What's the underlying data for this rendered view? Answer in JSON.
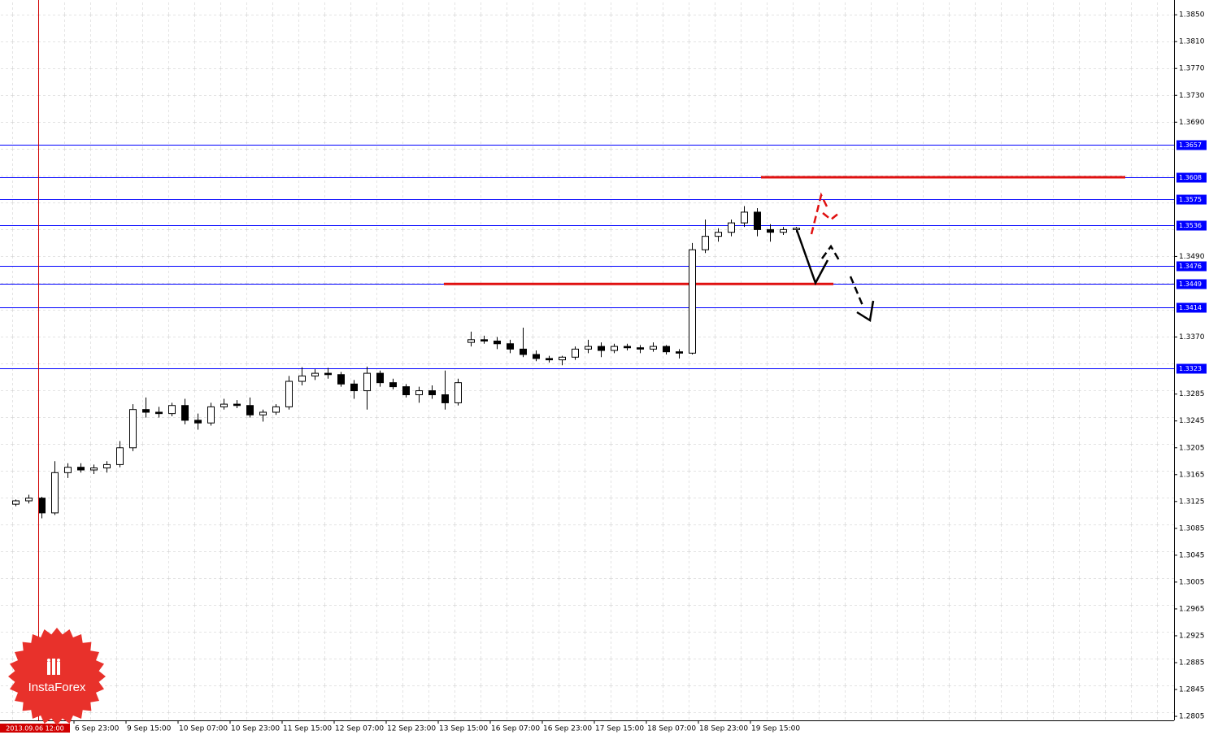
{
  "chart_data": {
    "type": "candlestick",
    "categories": [
      null,
      null,
      null,
      null,
      null,
      "6 Sep 23:00",
      null,
      null,
      null,
      "9 Sep 15:00",
      null,
      null,
      null,
      "10 Sep 07:00",
      null,
      null,
      null,
      "10 Sep 23:00",
      null,
      null,
      null,
      "11 Sep 15:00",
      null,
      null,
      null,
      "12 Sep 07:00",
      null,
      null,
      null,
      "12 Sep 23:00",
      null,
      null,
      null,
      "13 Sep 15:00",
      null,
      null,
      null,
      "16 Sep 07:00",
      null,
      null,
      null,
      "16 Sep 23:00",
      null,
      null,
      null,
      "17 Sep 15:00",
      null,
      null,
      null,
      "18 Sep 07:00",
      null,
      null,
      null,
      "18 Sep 23:00",
      null,
      null,
      null,
      "19 Sep 15:00",
      null,
      null,
      null
    ],
    "open": [
      1.3121,
      1.3126,
      1.313,
      1.3108,
      1.3168,
      1.3176,
      1.3172,
      1.3175,
      1.318,
      1.3205,
      1.3262,
      1.3258,
      1.3256,
      1.3268,
      1.3246,
      1.3242,
      1.3266,
      1.327,
      1.3268,
      1.3254,
      1.3258,
      1.3266,
      1.3304,
      1.3312,
      1.3316,
      1.3314,
      1.33,
      1.329,
      1.3316,
      1.3302,
      1.3296,
      1.3284,
      1.329,
      1.3284,
      1.3272,
      1.3362,
      1.3366,
      1.3364,
      1.336,
      1.3352,
      1.3344,
      1.3338,
      1.3336,
      1.334,
      1.3352,
      1.3356,
      1.335,
      1.3356,
      1.3354,
      1.3352,
      1.3356,
      1.3348,
      1.3346,
      1.35,
      1.352,
      1.3526,
      1.354,
      1.3556,
      1.353,
      1.3526,
      1.353
    ],
    "high": [
      1.3128,
      1.3135,
      1.3132,
      1.3185,
      1.3182,
      1.3182,
      1.318,
      1.3185,
      1.3215,
      1.327,
      1.328,
      1.3266,
      1.3272,
      1.3278,
      1.3256,
      1.3272,
      1.3278,
      1.3276,
      1.328,
      1.3262,
      1.327,
      1.3312,
      1.3325,
      1.3322,
      1.3324,
      1.3318,
      1.3306,
      1.3326,
      1.332,
      1.3308,
      1.33,
      1.3296,
      1.3298,
      1.332,
      1.3308,
      1.3378,
      1.3372,
      1.337,
      1.3366,
      1.3384,
      1.335,
      1.3342,
      1.3342,
      1.3356,
      1.3366,
      1.3362,
      1.336,
      1.336,
      1.3358,
      1.3362,
      1.3358,
      1.3352,
      1.351,
      1.3545,
      1.3532,
      1.3545,
      1.3565,
      1.3562,
      1.3538,
      1.3534,
      1.3534
    ],
    "low": [
      1.3118,
      1.3122,
      1.31,
      1.3105,
      1.316,
      1.3168,
      1.3166,
      1.3168,
      1.3176,
      1.32,
      1.325,
      1.325,
      1.3252,
      1.324,
      1.3232,
      1.3238,
      1.3262,
      1.3264,
      1.325,
      1.3244,
      1.3254,
      1.3262,
      1.3298,
      1.3306,
      1.3308,
      1.3296,
      1.3278,
      1.3262,
      1.3296,
      1.3292,
      1.328,
      1.3272,
      1.3278,
      1.3262,
      1.3268,
      1.3356,
      1.336,
      1.3352,
      1.3346,
      1.334,
      1.3334,
      1.3332,
      1.3328,
      1.3336,
      1.3346,
      1.334,
      1.3346,
      1.335,
      1.3346,
      1.3348,
      1.3344,
      1.3338,
      1.3344,
      1.3495,
      1.3512,
      1.352,
      1.3534,
      1.352,
      1.3512,
      1.3522,
      1.3526
    ],
    "close": [
      1.3126,
      1.313,
      1.3108,
      1.3168,
      1.3176,
      1.3172,
      1.3175,
      1.318,
      1.3205,
      1.3262,
      1.3258,
      1.3256,
      1.3268,
      1.3246,
      1.3242,
      1.3266,
      1.327,
      1.3268,
      1.3254,
      1.3258,
      1.3266,
      1.3304,
      1.3312,
      1.3316,
      1.3314,
      1.33,
      1.329,
      1.3316,
      1.3302,
      1.3296,
      1.3284,
      1.329,
      1.3284,
      1.3272,
      1.3302,
      1.3366,
      1.3364,
      1.336,
      1.3352,
      1.3344,
      1.3338,
      1.3336,
      1.334,
      1.3352,
      1.3356,
      1.335,
      1.3356,
      1.3354,
      1.3352,
      1.3356,
      1.3348,
      1.3346,
      1.35,
      1.352,
      1.3526,
      1.354,
      1.3556,
      1.353,
      1.3526,
      1.353,
      1.3532
    ],
    "ylim": [
      1.2799,
      1.3872
    ],
    "yticks": [
      {
        "value": 1.385,
        "label": "1.3850"
      },
      {
        "value": 1.381,
        "label": "1.3810"
      },
      {
        "value": 1.377,
        "label": "1.3770"
      },
      {
        "value": 1.373,
        "label": "1.3730"
      },
      {
        "value": 1.369,
        "label": "1.3690"
      },
      {
        "value": 1.349,
        "label": "1.3490"
      },
      {
        "value": 1.337,
        "label": "1.3370"
      },
      1.3285,
      1.3245,
      1.3205,
      1.3165,
      1.3125,
      1.3085,
      1.3045,
      1.3005,
      1.2965,
      1.2925,
      1.2885,
      1.2845,
      1.2805
    ],
    "levels": [
      1.3657,
      1.3608,
      1.3575,
      1.3536,
      1.3476,
      1.3449,
      1.3414,
      1.3323
    ],
    "level_color": "#0000ff",
    "red_levels": [
      1.3608,
      1.3449
    ],
    "red_color": "#e01010",
    "marker_label": "2013.09.06 12:00",
    "watermark": "InstaForex"
  }
}
